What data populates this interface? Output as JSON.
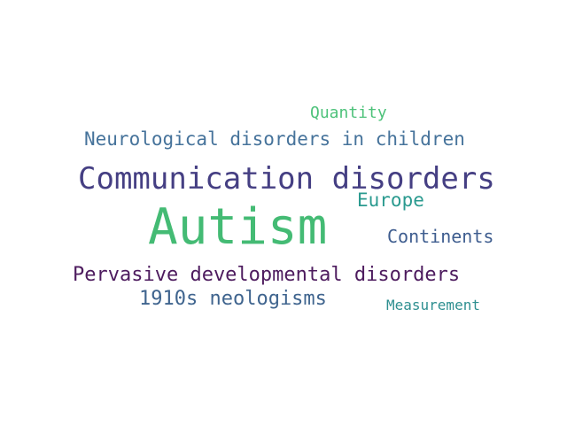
{
  "words": [
    {
      "text": "Quantity",
      "color": "#4dc27a"
    },
    {
      "text": "Neurological disorders in children",
      "color": "#46739b"
    },
    {
      "text": "Communication disorders",
      "color": "#453f83"
    },
    {
      "text": "Europe",
      "color": "#2a9a8f"
    },
    {
      "text": "Autism",
      "color": "#44bb74"
    },
    {
      "text": "Continents",
      "color": "#3e5d8f"
    },
    {
      "text": "Pervasive developmental disorders",
      "color": "#4d1b5e"
    },
    {
      "text": "1910s neologisms",
      "color": "#3f648e"
    },
    {
      "text": "Measurement",
      "color": "#2e8f90"
    }
  ]
}
